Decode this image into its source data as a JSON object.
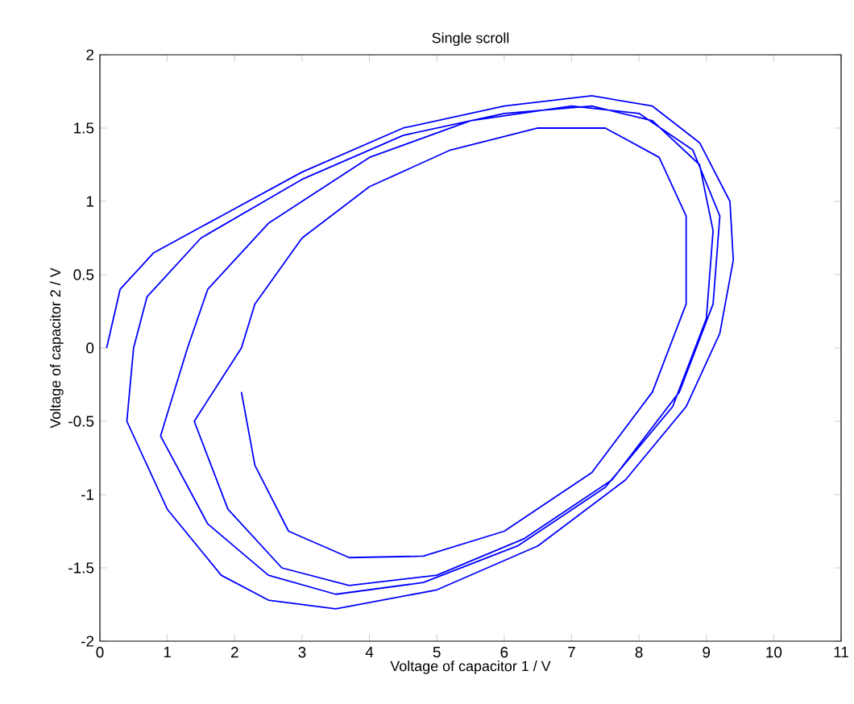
{
  "chart_data": {
    "type": "line",
    "title": "Single scroll",
    "xlabel": "Voltage of capacitor 1 / V",
    "ylabel": "Voltage of capacitor 2 / V",
    "xlim": [
      0,
      11
    ],
    "ylim": [
      -2,
      2
    ],
    "xticks": [
      0,
      1,
      2,
      3,
      4,
      5,
      6,
      7,
      8,
      9,
      10,
      11
    ],
    "yticks": [
      -2,
      -1.5,
      -1,
      -0.5,
      0,
      0.5,
      1,
      1.5,
      2
    ],
    "marker": "none",
    "line_style": "solid",
    "series": [
      {
        "color": "#0000ff",
        "x": [
          0.1,
          0.3,
          0.8,
          1.8,
          3,
          4.5,
          6,
          7.3,
          8.2,
          8.9,
          9.35,
          9.4,
          9.2,
          8.7,
          7.8,
          6.5,
          5,
          3.5,
          2.5,
          1.8,
          1,
          0.4,
          0.5,
          0.7,
          1.5,
          3,
          4.5,
          6,
          7.3,
          8.2,
          8.9,
          9.1,
          9,
          8.5,
          7.5,
          6.2,
          4.8,
          3.5,
          2.5,
          1.6,
          0.9,
          1.3,
          1.6,
          2.5,
          4,
          5.5,
          7,
          8,
          8.8,
          9.2,
          9.1,
          8.6,
          7.6,
          6.3,
          5,
          3.7,
          2.7,
          1.9,
          1.4,
          2.1,
          2.3,
          3,
          4,
          5.2,
          6.5,
          7.5,
          8.3,
          8.7,
          8.7,
          8.2,
          7.3,
          6,
          4.8,
          3.7,
          2.8,
          2.3,
          2.1
        ],
        "values": [
          0,
          0.4,
          0.65,
          0.9,
          1.2,
          1.5,
          1.65,
          1.72,
          1.65,
          1.4,
          1,
          0.6,
          0.1,
          -0.4,
          -0.9,
          -1.35,
          -1.65,
          -1.78,
          -1.72,
          -1.55,
          -1.1,
          -0.5,
          0,
          0.35,
          0.75,
          1.15,
          1.45,
          1.6,
          1.65,
          1.55,
          1.25,
          0.8,
          0.2,
          -0.4,
          -0.95,
          -1.35,
          -1.6,
          -1.68,
          -1.55,
          -1.2,
          -0.6,
          0,
          0.4,
          0.85,
          1.3,
          1.55,
          1.65,
          1.6,
          1.35,
          0.9,
          0.3,
          -0.3,
          -0.9,
          -1.3,
          -1.55,
          -1.62,
          -1.5,
          -1.1,
          -0.5,
          0,
          0.3,
          0.75,
          1.1,
          1.35,
          1.5,
          1.5,
          1.3,
          0.9,
          0.3,
          -0.3,
          -0.85,
          -1.25,
          -1.42,
          -1.43,
          -1.25,
          -0.8,
          -0.3
        ]
      }
    ]
  }
}
